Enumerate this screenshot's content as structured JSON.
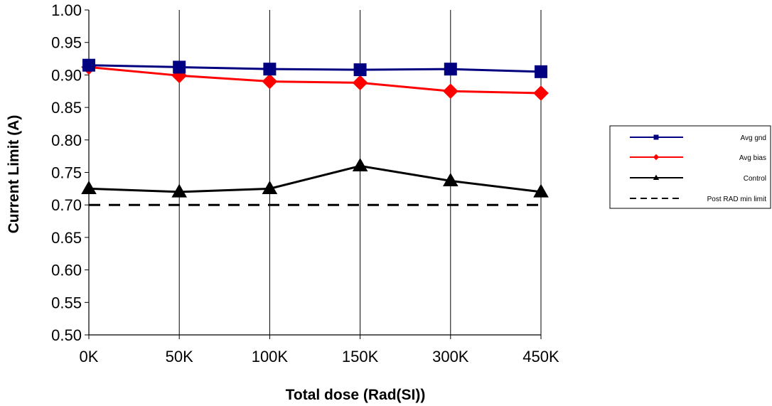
{
  "chart_data": {
    "type": "line",
    "title": "",
    "xlabel": "Total dose (Rad(SI))",
    "ylabel": "Current Limit (A)",
    "categories": [
      "0K",
      "50K",
      "100K",
      "150K",
      "300K",
      "450K"
    ],
    "y_ticks": [
      "0.50",
      "0.55",
      "0.60",
      "0.65",
      "0.70",
      "0.75",
      "0.80",
      "0.85",
      "0.90",
      "0.95",
      "1.00"
    ],
    "ylim": [
      0.5,
      1.0
    ],
    "grid": "vertical",
    "legend_position": "right",
    "series": [
      {
        "name": "Avg gnd",
        "color": "#000080",
        "marker": "square",
        "dash": "solid",
        "values": [
          0.915,
          0.912,
          0.909,
          0.908,
          0.909,
          0.905
        ]
      },
      {
        "name": "Avg bias",
        "color": "#ff0000",
        "marker": "diamond",
        "dash": "solid",
        "values": [
          0.912,
          0.899,
          0.89,
          0.888,
          0.875,
          0.872
        ]
      },
      {
        "name": "Control",
        "color": "#000000",
        "marker": "triangle",
        "dash": "solid",
        "values": [
          0.725,
          0.72,
          0.725,
          0.76,
          0.737,
          0.72
        ]
      },
      {
        "name": "Post RAD min limit",
        "color": "#000000",
        "marker": "none",
        "dash": "dashed",
        "values": [
          0.7,
          0.7,
          0.7,
          0.7,
          0.7,
          0.7
        ]
      }
    ]
  }
}
